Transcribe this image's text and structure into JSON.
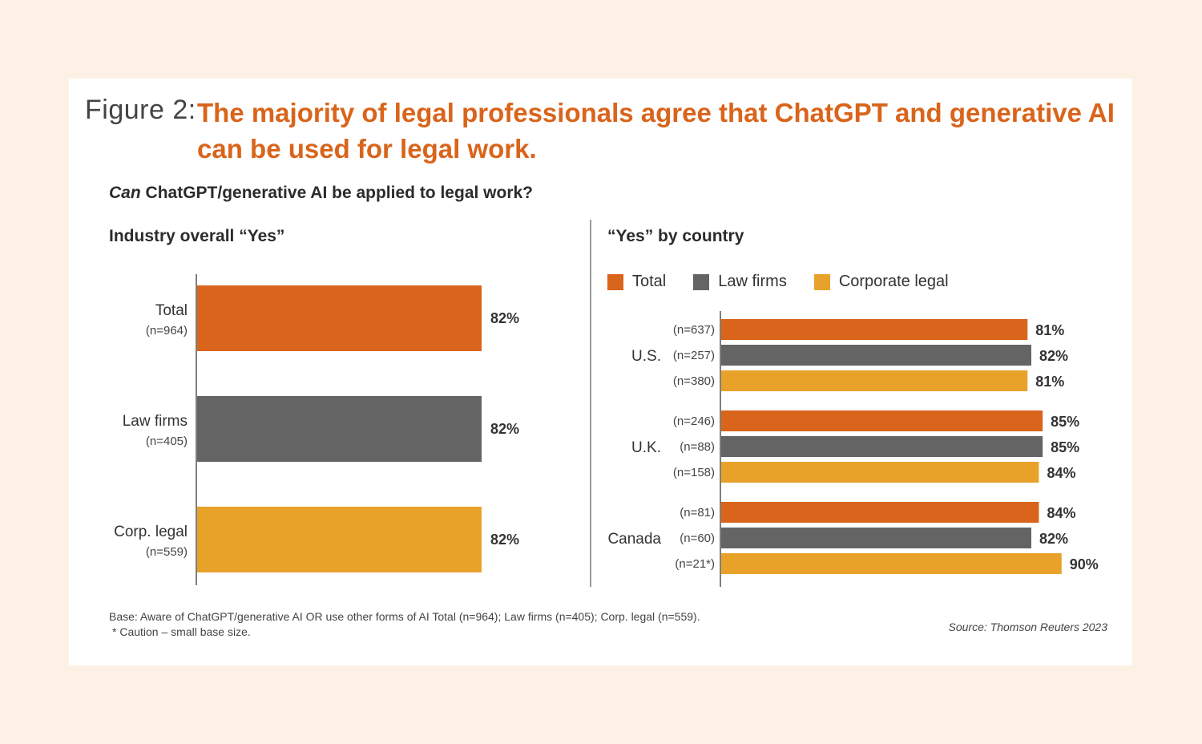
{
  "figure": {
    "label": "Figure 2:",
    "title": "The majority of legal professionals agree that ChatGPT and generative AI can be used for legal work.",
    "question_italic": "Can",
    "question_rest": " ChatGPT/generative AI be applied to legal work?"
  },
  "colors": {
    "total": "#d9641b",
    "law_firms": "#646464",
    "corporate_legal": "#e8a22a"
  },
  "chart_data": [
    {
      "type": "bar",
      "orientation": "horizontal",
      "title": "Industry overall “Yes”",
      "categories": [
        "Total",
        "Law firms",
        "Corp. legal"
      ],
      "sample_sizes": [
        "(n=964)",
        "(n=405)",
        "(n=559)"
      ],
      "values": [
        82,
        82,
        82
      ],
      "value_labels": [
        "82%",
        "82%",
        "82%"
      ],
      "series_colors": [
        "#d9641b",
        "#646464",
        "#e8a22a"
      ],
      "xlim": [
        0,
        100
      ],
      "unit": "%"
    },
    {
      "type": "bar",
      "orientation": "horizontal",
      "title": "“Yes” by country",
      "legend": [
        "Total",
        "Law firms",
        "Corporate legal"
      ],
      "legend_position": "top-left",
      "groups": [
        {
          "country": "U.S.",
          "sample_sizes": [
            "(n=637)",
            "(n=257)",
            "(n=380)"
          ],
          "values": [
            81,
            82,
            81
          ],
          "value_labels": [
            "81%",
            "82%",
            "81%"
          ]
        },
        {
          "country": "U.K.",
          "sample_sizes": [
            "(n=246)",
            "(n=88)",
            "(n=158)"
          ],
          "values": [
            85,
            85,
            84
          ],
          "value_labels": [
            "85%",
            "85%",
            "84%"
          ]
        },
        {
          "country": "Canada",
          "sample_sizes": [
            "(n=81)",
            "(n=60)",
            "(n=21*)"
          ],
          "values": [
            84,
            82,
            90
          ],
          "value_labels": [
            "84%",
            "82%",
            "90%"
          ]
        }
      ],
      "series": [
        {
          "name": "Total",
          "values": [
            81,
            85,
            84
          ]
        },
        {
          "name": "Law firms",
          "values": [
            82,
            85,
            82
          ]
        },
        {
          "name": "Corporate legal",
          "values": [
            81,
            84,
            90
          ]
        }
      ],
      "xlim": [
        0,
        100
      ],
      "unit": "%"
    }
  ],
  "footer": {
    "base_note": "Base: Aware of ChatGPT/generative AI OR use other forms of AI Total (n=964); Law firms (n=405); Corp. legal (n=559).",
    "caution_note": "* Caution – small base size.",
    "source": "Source: Thomson Reuters 2023"
  }
}
